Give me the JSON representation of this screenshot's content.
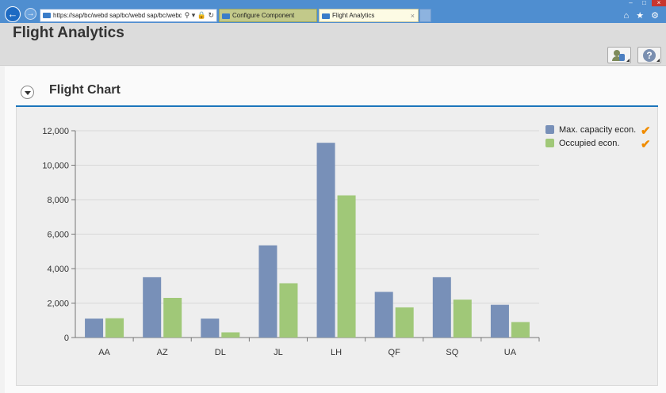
{
  "browser": {
    "address_url": "https://sap/bc/webd sap/bc/webd sap/bc/webd",
    "address_tools": "⚲ ▾ 🔒 ↻",
    "tabs": [
      {
        "label": "Configure Component"
      },
      {
        "label": "Flight Analytics",
        "close": "×"
      }
    ],
    "window_controls": {
      "minimize": "–",
      "maximize": "□",
      "close": "×"
    },
    "toolbar_icons": "⌂ ★ ⚙"
  },
  "app": {
    "title": "Flight Analytics",
    "help_label": "?"
  },
  "panel": {
    "title": "Flight Chart"
  },
  "colors": {
    "series_1": "#7890b8",
    "series_2": "#a0c878",
    "accent": "#1b75bb",
    "check": "#f08c00"
  },
  "chart_data": {
    "type": "bar",
    "categories": [
      "AA",
      "AZ",
      "DL",
      "JL",
      "LH",
      "QF",
      "SQ",
      "UA"
    ],
    "series": [
      {
        "name": "Max. capacity econ.",
        "values": [
          1100,
          3500,
          1100,
          5350,
          11300,
          2650,
          3500,
          1900
        ]
      },
      {
        "name": "Occupied econ.",
        "values": [
          1120,
          2300,
          300,
          3150,
          8250,
          1750,
          2200,
          900
        ]
      }
    ],
    "ylim": [
      0,
      12000
    ],
    "yticks": [
      "0",
      "2,000",
      "4,000",
      "6,000",
      "8,000",
      "10,000",
      "12,000"
    ],
    "ytick_values": [
      0,
      2000,
      4000,
      6000,
      8000,
      10000,
      12000
    ],
    "grid": true,
    "legend": "right",
    "legend_check": "✔"
  }
}
